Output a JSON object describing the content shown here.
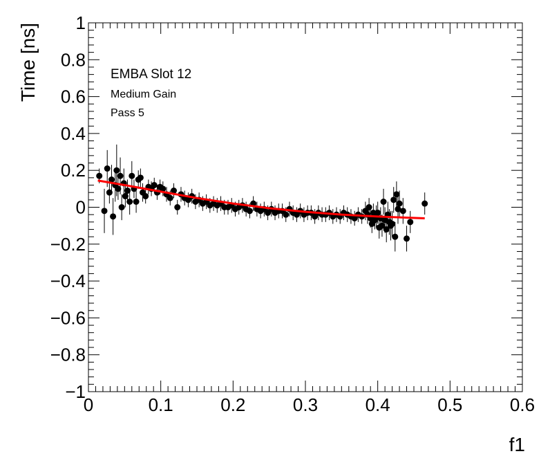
{
  "chart_data": {
    "type": "scatter",
    "title": "",
    "xlabel": "f1",
    "ylabel": "Time [ns]",
    "xlim": [
      0,
      0.6
    ],
    "ylim": [
      -1,
      1
    ],
    "x_ticks": [
      0,
      0.1,
      0.2,
      0.3,
      0.4,
      0.5,
      0.6
    ],
    "x_tick_labels": [
      "0",
      "0.1",
      "0.2",
      "0.3",
      "0.4",
      "0.5",
      "0.6"
    ],
    "y_ticks": [
      -1,
      -0.8,
      -0.6,
      -0.4,
      -0.2,
      0,
      0.2,
      0.4,
      0.6,
      0.8,
      1
    ],
    "y_tick_labels": [
      "−1",
      "−0.8",
      "−0.6",
      "−0.4",
      "−0.2",
      "0",
      "0.2",
      "0.4",
      "0.6",
      "0.8",
      "1"
    ],
    "grid": false,
    "annotations": [
      "EMBA Slot 12",
      "Medium Gain",
      "Pass 5"
    ],
    "marker_color": "#000000",
    "fit_color": "#ff0000",
    "series": [
      {
        "kind": "points_with_errors",
        "x": [
          0.015,
          0.022,
          0.026,
          0.029,
          0.032,
          0.034,
          0.037,
          0.039,
          0.041,
          0.044,
          0.046,
          0.049,
          0.051,
          0.054,
          0.057,
          0.06,
          0.063,
          0.066,
          0.069,
          0.072,
          0.075,
          0.079,
          0.083,
          0.087,
          0.091,
          0.095,
          0.099,
          0.103,
          0.108,
          0.113,
          0.118,
          0.123,
          0.128,
          0.133,
          0.138,
          0.143,
          0.148,
          0.153,
          0.158,
          0.163,
          0.168,
          0.173,
          0.178,
          0.183,
          0.188,
          0.193,
          0.198,
          0.203,
          0.208,
          0.213,
          0.218,
          0.223,
          0.228,
          0.233,
          0.238,
          0.243,
          0.248,
          0.253,
          0.258,
          0.263,
          0.268,
          0.273,
          0.278,
          0.283,
          0.288,
          0.293,
          0.298,
          0.303,
          0.308,
          0.313,
          0.318,
          0.323,
          0.328,
          0.333,
          0.338,
          0.343,
          0.348,
          0.353,
          0.358,
          0.363,
          0.368,
          0.373,
          0.378,
          0.383,
          0.386,
          0.388,
          0.39,
          0.392,
          0.394,
          0.396,
          0.398,
          0.4,
          0.402,
          0.404,
          0.406,
          0.408,
          0.41,
          0.412,
          0.414,
          0.416,
          0.418,
          0.42,
          0.422,
          0.424,
          0.426,
          0.428,
          0.43,
          0.435,
          0.44,
          0.445,
          0.465
        ],
        "y": [
          0.17,
          -0.02,
          0.21,
          0.08,
          0.15,
          -0.05,
          0.12,
          0.2,
          0.1,
          0.17,
          0.0,
          0.13,
          0.06,
          0.09,
          0.03,
          0.17,
          0.1,
          0.03,
          0.15,
          0.16,
          0.08,
          0.06,
          0.11,
          0.1,
          0.12,
          0.08,
          0.11,
          0.1,
          0.07,
          0.05,
          0.09,
          0.0,
          0.07,
          0.05,
          0.04,
          0.06,
          0.03,
          0.04,
          0.02,
          0.03,
          0.01,
          0.02,
          0.01,
          0.02,
          0.0,
          0.0,
          0.01,
          -0.01,
          0.0,
          0.01,
          -0.01,
          -0.02,
          0.02,
          -0.01,
          -0.02,
          -0.01,
          -0.03,
          -0.01,
          -0.03,
          -0.02,
          -0.02,
          -0.04,
          -0.01,
          -0.03,
          -0.04,
          -0.02,
          -0.04,
          -0.03,
          -0.03,
          -0.05,
          -0.03,
          -0.04,
          -0.04,
          -0.03,
          -0.05,
          -0.04,
          -0.05,
          -0.03,
          -0.04,
          -0.05,
          -0.06,
          -0.04,
          -0.05,
          -0.02,
          -0.04,
          0.0,
          -0.06,
          -0.09,
          -0.03,
          -0.07,
          -0.05,
          -0.03,
          -0.11,
          -0.06,
          -0.1,
          0.03,
          -0.07,
          -0.12,
          -0.04,
          -0.08,
          -0.1,
          -0.09,
          0.04,
          -0.16,
          0.07,
          -0.01,
          0.02,
          -0.02,
          -0.17,
          -0.08,
          0.02
        ],
        "err": [
          0.04,
          0.12,
          0.1,
          0.06,
          0.08,
          0.1,
          0.09,
          0.14,
          0.06,
          0.1,
          0.07,
          0.08,
          0.06,
          0.06,
          0.07,
          0.08,
          0.05,
          0.06,
          0.05,
          0.05,
          0.05,
          0.04,
          0.04,
          0.04,
          0.04,
          0.04,
          0.04,
          0.04,
          0.04,
          0.04,
          0.04,
          0.04,
          0.04,
          0.04,
          0.04,
          0.04,
          0.04,
          0.04,
          0.04,
          0.04,
          0.04,
          0.04,
          0.04,
          0.04,
          0.04,
          0.04,
          0.04,
          0.04,
          0.04,
          0.04,
          0.04,
          0.04,
          0.04,
          0.04,
          0.04,
          0.04,
          0.04,
          0.04,
          0.04,
          0.04,
          0.04,
          0.04,
          0.04,
          0.04,
          0.04,
          0.04,
          0.04,
          0.04,
          0.04,
          0.04,
          0.04,
          0.04,
          0.04,
          0.04,
          0.04,
          0.04,
          0.04,
          0.04,
          0.04,
          0.04,
          0.04,
          0.04,
          0.04,
          0.05,
          0.05,
          0.05,
          0.05,
          0.05,
          0.05,
          0.05,
          0.06,
          0.06,
          0.06,
          0.06,
          0.06,
          0.07,
          0.07,
          0.07,
          0.07,
          0.07,
          0.08,
          0.07,
          0.07,
          0.08,
          0.07,
          0.08,
          0.07,
          0.07,
          0.07,
          0.06,
          0.06
        ]
      },
      {
        "kind": "fit_curve",
        "x": [
          0.013,
          0.05,
          0.1,
          0.15,
          0.2,
          0.25,
          0.3,
          0.35,
          0.4,
          0.43,
          0.465
        ],
        "y": [
          0.145,
          0.12,
          0.085,
          0.05,
          0.02,
          -0.005,
          -0.025,
          -0.04,
          -0.05,
          -0.055,
          -0.06
        ]
      }
    ]
  }
}
